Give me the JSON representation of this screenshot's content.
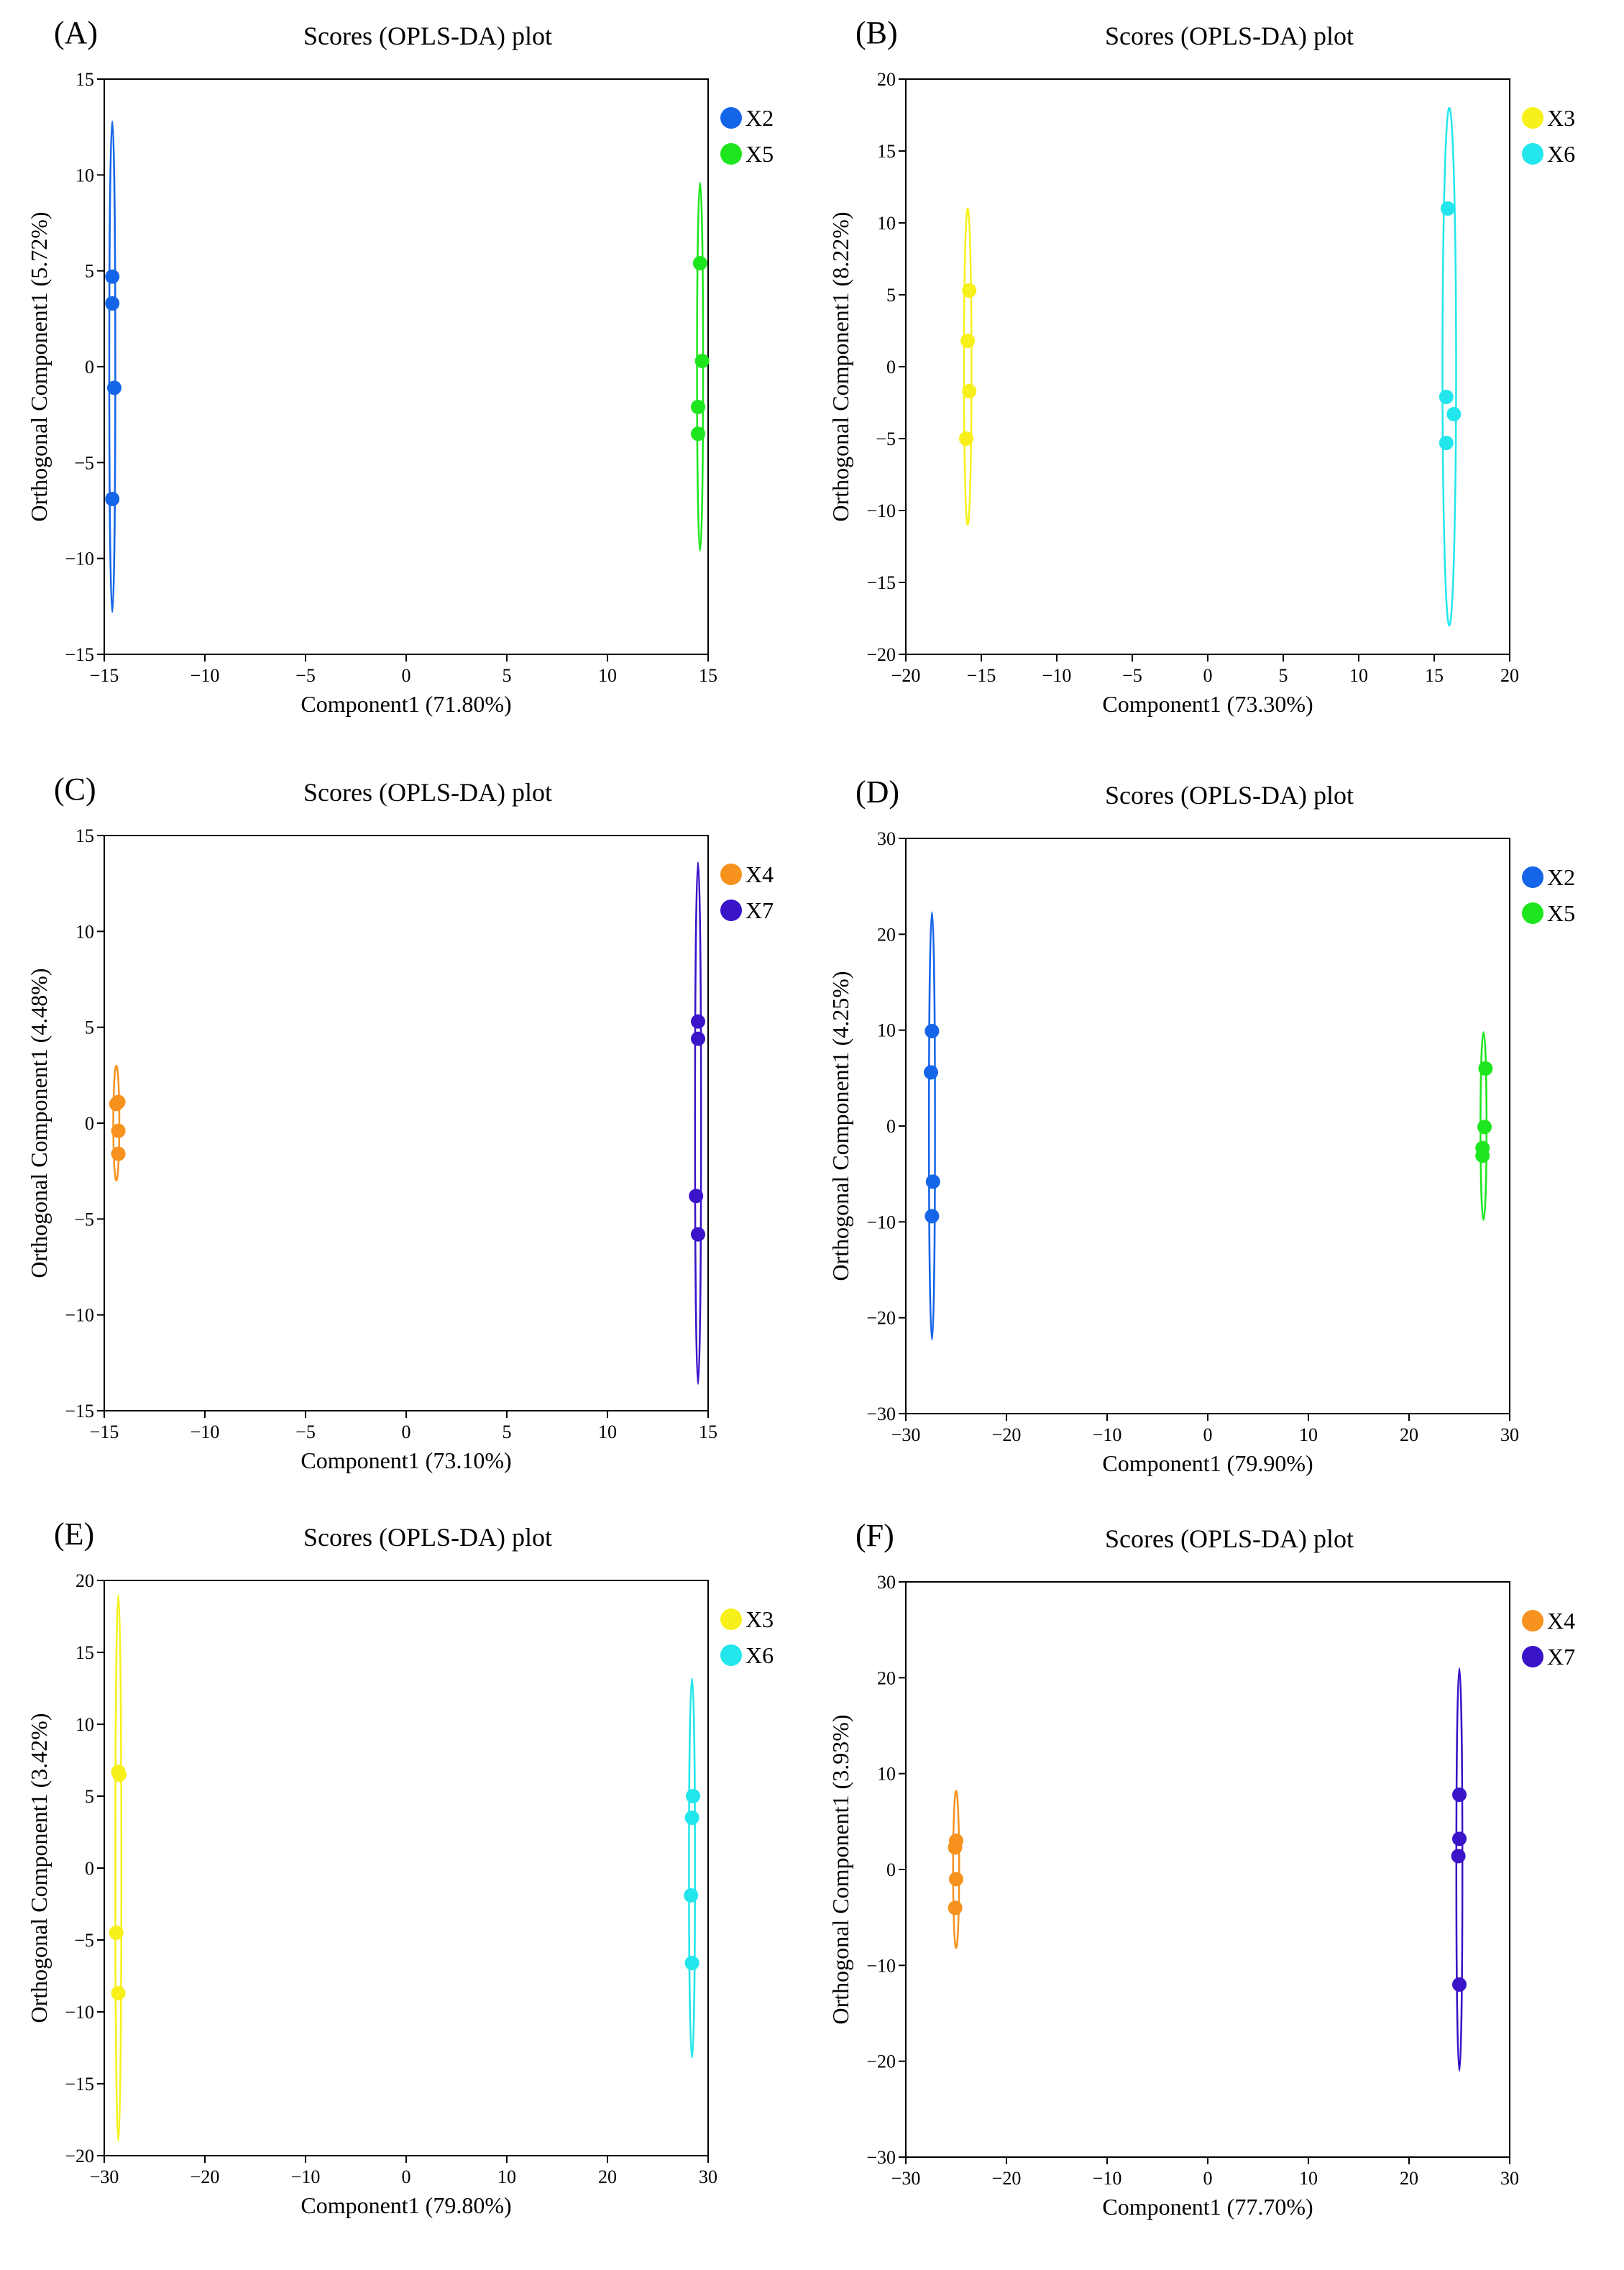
{
  "chart_data": [
    {
      "panel": "(A)",
      "type": "scatter",
      "title": "Scores (OPLS-DA) plot",
      "xlabel": "Component1 (71.80%)",
      "ylabel": "Orthogonal Component1 (5.72%)",
      "xlim": [
        -15,
        15
      ],
      "ylim": [
        -15,
        15
      ],
      "xticks": [
        -15,
        -10,
        -5,
        0,
        5,
        10,
        15
      ],
      "yticks": [
        -15,
        -10,
        -5,
        0,
        5,
        10,
        15
      ],
      "legend_position": "top-right",
      "series": [
        {
          "name": "X2",
          "color": "#1565e8",
          "x": [
            -14.6,
            -14.6,
            -14.5,
            -14.6
          ],
          "y": [
            4.7,
            3.3,
            -1.1,
            -6.9
          ],
          "ellipse": {
            "cx": -14.6,
            "cy": 0,
            "rx": 0.15,
            "ry": 12.8
          }
        },
        {
          "name": "X5",
          "color": "#1ee61e",
          "x": [
            14.6,
            14.7,
            14.5,
            14.5
          ],
          "y": [
            5.4,
            0.3,
            -2.1,
            -3.5
          ],
          "ellipse": {
            "cx": 14.6,
            "cy": 0,
            "rx": 0.15,
            "ry": 9.6
          }
        }
      ]
    },
    {
      "panel": "(B)",
      "type": "scatter",
      "title": "Scores (OPLS-DA) plot",
      "xlabel": "Component1 (73.30%)",
      "ylabel": "Orthogonal Component1 (8.22%)",
      "xlim": [
        -20,
        20
      ],
      "ylim": [
        -20,
        20
      ],
      "xticks": [
        -20,
        -15,
        -10,
        -5,
        0,
        5,
        10,
        15,
        20
      ],
      "yticks": [
        -20,
        -15,
        -10,
        -5,
        0,
        5,
        10,
        15,
        20
      ],
      "legend_position": "top-right",
      "series": [
        {
          "name": "X3",
          "color": "#f7f01a",
          "x": [
            -15.8,
            -15.9,
            -15.8,
            -16.0
          ],
          "y": [
            5.3,
            1.8,
            -1.7,
            -5.0
          ],
          "ellipse": {
            "cx": -15.9,
            "cy": 0,
            "rx": 0.25,
            "ry": 11.0
          }
        },
        {
          "name": "X6",
          "color": "#22e6ec",
          "x": [
            15.9,
            15.8,
            16.3,
            15.8
          ],
          "y": [
            11.0,
            -2.1,
            -3.3,
            -5.3
          ],
          "ellipse": {
            "cx": 16.0,
            "cy": 0,
            "rx": 0.45,
            "ry": 18.0
          }
        }
      ]
    },
    {
      "panel": "(C)",
      "type": "scatter",
      "title": "Scores (OPLS-DA) plot",
      "xlabel": "Component1 (73.10%)",
      "ylabel": "Orthogonal Component1 (4.48%)",
      "xlim": [
        -15,
        15
      ],
      "ylim": [
        -15,
        15
      ],
      "xticks": [
        -15,
        -10,
        -5,
        0,
        5,
        10,
        15
      ],
      "yticks": [
        -15,
        -10,
        -5,
        0,
        5,
        10,
        15
      ],
      "legend_position": "top-right",
      "series": [
        {
          "name": "X4",
          "color": "#f7921e",
          "x": [
            -14.3,
            -14.4,
            -14.3,
            -14.3
          ],
          "y": [
            1.1,
            1.0,
            -0.4,
            -1.6
          ],
          "ellipse": {
            "cx": -14.4,
            "cy": 0,
            "rx": 0.15,
            "ry": 3.0
          }
        },
        {
          "name": "X7",
          "color": "#3a14c8",
          "x": [
            14.5,
            14.5,
            14.4,
            14.5
          ],
          "y": [
            5.3,
            4.4,
            -3.8,
            -5.8
          ],
          "ellipse": {
            "cx": 14.5,
            "cy": 0,
            "rx": 0.15,
            "ry": 13.6
          }
        }
      ]
    },
    {
      "panel": "(D)",
      "type": "scatter",
      "title": "Scores (OPLS-DA) plot",
      "xlabel": "Component1 (79.90%)",
      "ylabel": "Orthogonal Component1 (4.25%)",
      "xlim": [
        -30,
        30
      ],
      "ylim": [
        -30,
        30
      ],
      "xticks": [
        -30,
        -20,
        -10,
        0,
        10,
        20,
        30
      ],
      "yticks": [
        -30,
        -20,
        -10,
        0,
        10,
        20,
        30
      ],
      "legend_position": "top-right",
      "series": [
        {
          "name": "X2",
          "color": "#1565e8",
          "x": [
            -27.4,
            -27.5,
            -27.3,
            -27.4
          ],
          "y": [
            9.9,
            5.6,
            -5.8,
            -9.4
          ],
          "ellipse": {
            "cx": -27.4,
            "cy": 0,
            "rx": 0.3,
            "ry": 22.3
          }
        },
        {
          "name": "X5",
          "color": "#1ee61e",
          "x": [
            27.6,
            27.5,
            27.3,
            27.3
          ],
          "y": [
            6.0,
            -0.1,
            -2.3,
            -3.1
          ],
          "ellipse": {
            "cx": 27.4,
            "cy": 0,
            "rx": 0.3,
            "ry": 9.8
          }
        }
      ]
    },
    {
      "panel": "(E)",
      "type": "scatter",
      "title": "Scores (OPLS-DA) plot",
      "xlabel": "Component1 (79.80%)",
      "ylabel": "Orthogonal Component1 (3.42%)",
      "xlim": [
        -30,
        30
      ],
      "ylim": [
        -20,
        20
      ],
      "xticks": [
        -30,
        -20,
        -10,
        0,
        10,
        20,
        30
      ],
      "yticks": [
        -20,
        -15,
        -10,
        -5,
        0,
        5,
        10,
        15,
        20
      ],
      "legend_position": "top-right",
      "series": [
        {
          "name": "X3",
          "color": "#f7f01a",
          "x": [
            -28.6,
            -28.5,
            -28.8,
            -28.6
          ],
          "y": [
            6.7,
            6.5,
            -4.5,
            -8.7
          ],
          "ellipse": {
            "cx": -28.6,
            "cy": 0,
            "rx": 0.3,
            "ry": 19.0
          }
        },
        {
          "name": "X6",
          "color": "#22e6ec",
          "x": [
            28.5,
            28.4,
            28.3,
            28.4
          ],
          "y": [
            5.0,
            3.5,
            -1.9,
            -6.6
          ],
          "ellipse": {
            "cx": 28.4,
            "cy": 0,
            "rx": 0.3,
            "ry": 13.2
          }
        }
      ]
    },
    {
      "panel": "(F)",
      "type": "scatter",
      "title": "Scores (OPLS-DA) plot",
      "xlabel": "Component1 (77.70%)",
      "ylabel": "Orthogonal Component1 (3.93%)",
      "xlim": [
        -30,
        30
      ],
      "ylim": [
        -30,
        30
      ],
      "xticks": [
        -30,
        -20,
        -10,
        0,
        10,
        20,
        30
      ],
      "yticks": [
        -30,
        -20,
        -10,
        0,
        10,
        20,
        30
      ],
      "legend_position": "top-right",
      "series": [
        {
          "name": "X4",
          "color": "#f7921e",
          "x": [
            -25.0,
            -25.1,
            -25.0,
            -25.1
          ],
          "y": [
            3.0,
            2.3,
            -1.0,
            -4.0
          ],
          "ellipse": {
            "cx": -25.0,
            "cy": 0,
            "rx": 0.3,
            "ry": 8.2
          }
        },
        {
          "name": "X7",
          "color": "#3a14c8",
          "x": [
            25.0,
            25.0,
            24.9,
            25.0
          ],
          "y": [
            7.8,
            3.2,
            1.4,
            -12.0
          ],
          "ellipse": {
            "cx": 25.0,
            "cy": 0,
            "rx": 0.3,
            "ry": 21.0
          }
        }
      ]
    }
  ]
}
